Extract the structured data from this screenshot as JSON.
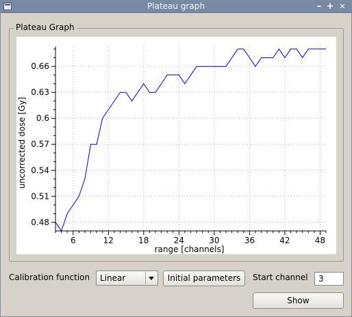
{
  "window": {
    "title": "Plateau graph",
    "controls": {
      "minimize": "–",
      "maximize": "+",
      "close": "✕"
    }
  },
  "group": {
    "title": "Plateau Graph"
  },
  "chart_data": {
    "type": "line",
    "title": "",
    "xlabel": "range [channels]",
    "ylabel": "uncorrected dose [Gy]",
    "xlim": [
      3,
      49
    ],
    "ylim": [
      0.47,
      0.683
    ],
    "x_ticks": [
      6,
      12,
      18,
      24,
      30,
      36,
      42,
      48
    ],
    "y_ticks": [
      0.48,
      0.51,
      0.54,
      0.57,
      0.6,
      0.63,
      0.66
    ],
    "y_tick_labels": [
      "0.48",
      "0.51",
      "0.54",
      "0.57",
      "0.6",
      "0.63",
      "0.66"
    ],
    "grid": true,
    "line_color": "#0000cc",
    "series": [
      {
        "x": [
          3,
          4,
          5,
          6,
          7,
          8,
          9,
          10,
          11,
          12,
          13,
          14,
          15,
          16,
          17,
          18,
          19,
          20,
          21,
          22,
          23,
          24,
          25,
          26,
          27,
          28,
          29,
          30,
          31,
          32,
          33,
          34,
          35,
          36,
          37,
          38,
          39,
          40,
          41,
          42,
          43,
          44,
          45,
          46,
          47,
          48,
          49
        ],
        "values": [
          0.48,
          0.47,
          0.49,
          0.5,
          0.51,
          0.53,
          0.57,
          0.57,
          0.6,
          0.61,
          0.62,
          0.63,
          0.63,
          0.62,
          0.63,
          0.64,
          0.63,
          0.63,
          0.64,
          0.65,
          0.65,
          0.65,
          0.64,
          0.65,
          0.66,
          0.66,
          0.66,
          0.66,
          0.66,
          0.66,
          0.67,
          0.68,
          0.68,
          0.67,
          0.66,
          0.67,
          0.67,
          0.67,
          0.68,
          0.67,
          0.68,
          0.68,
          0.67,
          0.68,
          0.68,
          0.68,
          0.68
        ]
      }
    ]
  },
  "controls": {
    "calibration_label": "Calibration function",
    "calibration_value": "Linear",
    "initial_parameters_label": "Initial parameters",
    "start_channel_label": "Start channel",
    "start_channel_value": "3",
    "show_label": "Show"
  }
}
